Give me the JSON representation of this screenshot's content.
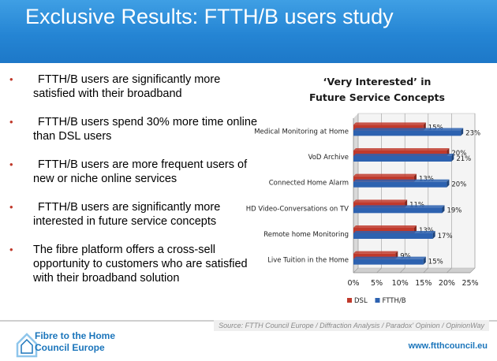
{
  "header": {
    "title": "Exclusive Results: FTTH/B users study"
  },
  "bullets": [
    {
      "text": "FTTH/B users are significantly more satisfied with their broadband"
    },
    {
      "text": "FTTH/B users spend 30% more time online than DSL users"
    },
    {
      "text": "FTTH/B users are more frequent users of new or niche online services"
    },
    {
      "text": "FTTH/B users are significantly more interested in future service concepts"
    },
    {
      "text": "The fibre platform offers a cross-sell opportunity to customers who are satisfied with their broadband solution"
    }
  ],
  "chart_data": {
    "type": "bar",
    "orientation": "horizontal",
    "title_line1": "‘Very Interested’ in",
    "title_line2": "Future Service Concepts",
    "categories": [
      "Medical Monitoring at Home",
      "VoD Archive",
      "Connected Home Alarm",
      "HD Video-Conversations on TV",
      "Remote home Monitoring",
      "Live Tuition in the Home"
    ],
    "series": [
      {
        "name": "DSL",
        "color": "#c0392b",
        "values": [
          15,
          20,
          13,
          11,
          13,
          9
        ],
        "labels": [
          "15%",
          "20%",
          "13%",
          "11%",
          "13%",
          "9%"
        ]
      },
      {
        "name": "FTTH/B",
        "color": "#2d62b0",
        "values": [
          23,
          21,
          20,
          19,
          17,
          15
        ],
        "labels": [
          "23%",
          "21%",
          "20%",
          "19%",
          "17%",
          "15%"
        ]
      }
    ],
    "xlim": [
      0,
      25
    ],
    "ticks": [
      "0%",
      "5%",
      "10%",
      "15%",
      "20%",
      "25%"
    ],
    "grid": true,
    "legend_position": "bottom-left"
  },
  "footer": {
    "source": "Source: FTTH Council Europe / Diffraction Analysis / Paradox' Opinion / OpinionWay",
    "logo_line1": "Fibre to the Home",
    "logo_line2": "Council Europe",
    "website": "www.ftthcouncil.eu"
  }
}
